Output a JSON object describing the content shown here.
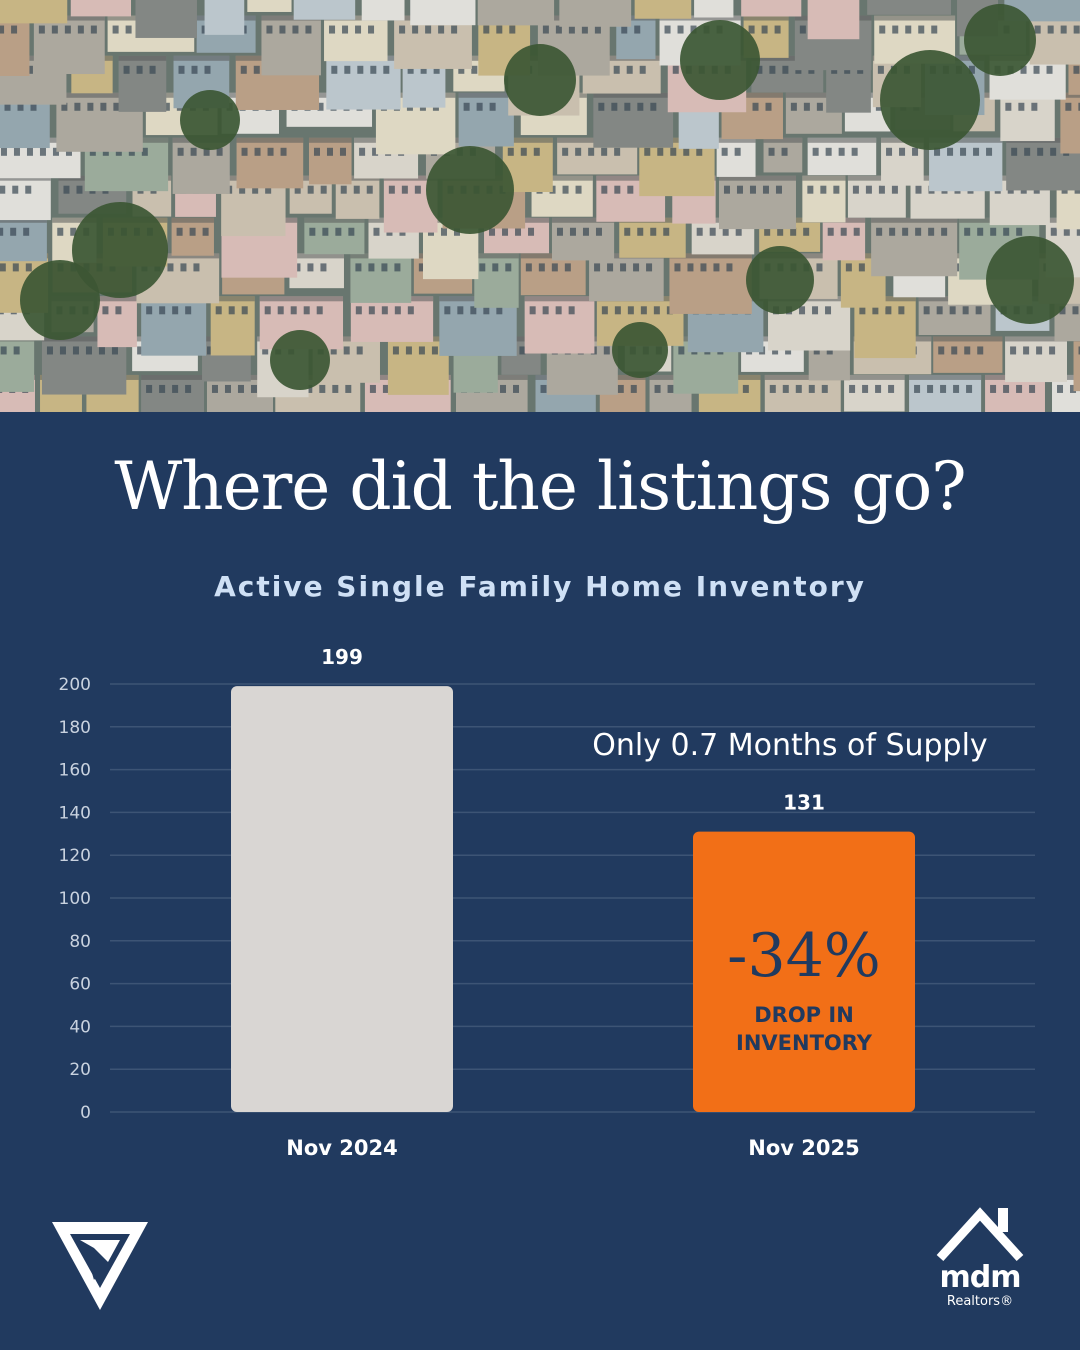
{
  "headline": "Where did the listings go?",
  "chart_data": {
    "type": "bar",
    "title": "Active Single Family Home Inventory",
    "categories": [
      "Nov 2024",
      "Nov 2025"
    ],
    "values": [
      199,
      131
    ],
    "value_labels": [
      "199",
      "131"
    ],
    "ylim": [
      0,
      200
    ],
    "yticks": [
      0,
      20,
      40,
      60,
      80,
      100,
      120,
      140,
      160,
      180,
      200
    ],
    "grid": true,
    "bar_colors": [
      "#d9d6d3",
      "#f26f17"
    ],
    "annotations": {
      "supply": "Only 0.7 Months of Supply",
      "change_pct": "-34%",
      "change_line1": "DROP IN",
      "change_line2": "INVENTORY"
    }
  },
  "branding": {
    "left_logo": "geometric-v-logo-icon",
    "right_logo_text": "mdm",
    "right_logo_sub": "Realtors®",
    "right_logo_icon": "house-roof-icon"
  },
  "colors": {
    "background": "#213a5f",
    "accent": "#f26f17",
    "subtitle": "#cfe0f5"
  }
}
